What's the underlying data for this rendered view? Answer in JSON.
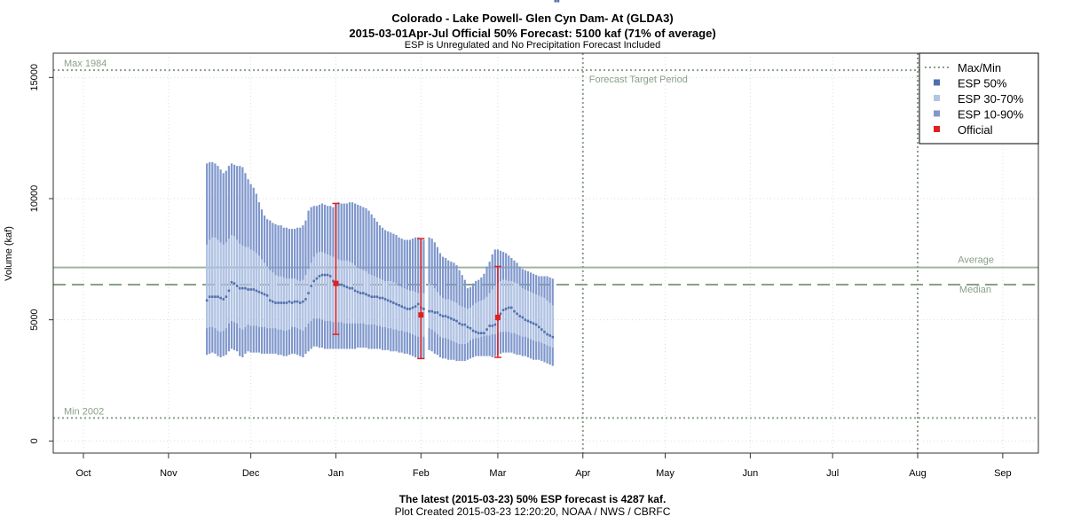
{
  "header": {
    "title": "Colorado - Lake Powell- Glen Cyn Dam- At (GLDA3)",
    "subtitle": "2015-03-01Apr-Jul Official 50% Forecast: 5100 kaf (71% of average)",
    "note": "ESP is Unregulated and No Precipitation Forecast Included"
  },
  "footer": {
    "latest": "The latest (2015-03-23) 50% ESP forecast is 4287 kaf.",
    "created": "Plot Created 2015-03-23 12:20:20, NOAA / NWS / CBRFC"
  },
  "colors": {
    "esp50": "#4f6fae",
    "esp30_70": "#b3c4e4",
    "esp10_90": "#7f97cc",
    "official": "#e02020",
    "ref_lines": "#8aa08a"
  },
  "chart_data": {
    "type": "line",
    "ylabel": "Volume (kaf)",
    "xlabel": "",
    "ylim": [
      -500,
      16000
    ],
    "yticks": [
      0,
      5000,
      10000,
      15000
    ],
    "x_months": [
      "Oct",
      "Nov",
      "Dec",
      "Jan",
      "Feb",
      "Mar",
      "Apr",
      "May",
      "Jun",
      "Jul",
      "Aug",
      "Sep"
    ],
    "grid": true,
    "legend": {
      "position": "top-right",
      "entries": [
        {
          "label": "Max/Min",
          "symbol": "dotted-line",
          "color": "#8aa08a"
        },
        {
          "label": "ESP 50%",
          "symbol": "square",
          "color": "#4f6fae"
        },
        {
          "label": "ESP 30-70%",
          "symbol": "square",
          "color": "#b3c4e4"
        },
        {
          "label": "ESP 10-90%",
          "symbol": "square",
          "color": "#7f97cc"
        },
        {
          "label": "Official",
          "symbol": "square",
          "color": "#e02020"
        }
      ]
    },
    "reference_lines": {
      "max": {
        "label": "Max 1984",
        "value": 15300
      },
      "min": {
        "label": "Min 2002",
        "value": 950
      },
      "average": {
        "label": "Average",
        "value": 7160
      },
      "median": {
        "label": "Median",
        "value": 6450
      }
    },
    "forecast_period": {
      "label": "Forecast Target Period",
      "start": "Apr",
      "end": "Aug"
    },
    "esp_series": {
      "dates": [
        "11-15",
        "11-16",
        "11-17",
        "11-18",
        "11-19",
        "11-20",
        "11-21",
        "11-22",
        "11-23",
        "11-24",
        "11-25",
        "11-26",
        "11-27",
        "11-28",
        "11-29",
        "11-30",
        "12-01",
        "12-02",
        "12-03",
        "12-04",
        "12-05",
        "12-06",
        "12-07",
        "12-08",
        "12-09",
        "12-10",
        "12-11",
        "12-12",
        "12-13",
        "12-14",
        "12-15",
        "12-16",
        "12-17",
        "12-18",
        "12-19",
        "12-20",
        "12-21",
        "12-22",
        "12-23",
        "12-24",
        "12-25",
        "12-26",
        "12-27",
        "12-28",
        "12-29",
        "12-30",
        "12-31",
        "01-01",
        "01-02",
        "01-03",
        "01-04",
        "01-05",
        "01-06",
        "01-07",
        "01-08",
        "01-09",
        "01-10",
        "01-11",
        "01-12",
        "01-13",
        "01-14",
        "01-15",
        "01-16",
        "01-17",
        "01-18",
        "01-19",
        "01-20",
        "01-21",
        "01-22",
        "01-23",
        "01-24",
        "01-25",
        "01-26",
        "01-27",
        "01-28",
        "01-29",
        "01-30",
        "01-31",
        "02-01",
        "02-02",
        "02-04",
        "02-05",
        "02-06",
        "02-07",
        "02-08",
        "02-09",
        "02-10",
        "02-11",
        "02-12",
        "02-13",
        "02-14",
        "02-15",
        "02-16",
        "02-17",
        "02-18",
        "02-19",
        "02-20",
        "02-21",
        "02-22",
        "02-23",
        "02-24",
        "02-25",
        "02-26",
        "02-27",
        "02-28",
        "03-01",
        "03-02",
        "03-03",
        "03-04",
        "03-05",
        "03-06",
        "03-07",
        "03-08",
        "03-09",
        "03-10",
        "03-11",
        "03-12",
        "03-13",
        "03-14",
        "03-15",
        "03-16",
        "03-17",
        "03-18",
        "03-19",
        "03-20",
        "03-21",
        "03-22",
        "03-23"
      ],
      "p10": [
        3550,
        3600,
        3650,
        3600,
        3500,
        3450,
        3500,
        3550,
        3700,
        3800,
        3750,
        3700,
        3500,
        3450,
        3600,
        3700,
        3650,
        3650,
        3650,
        3650,
        3600,
        3600,
        3600,
        3600,
        3600,
        3600,
        3550,
        3550,
        3500,
        3500,
        3550,
        3600,
        3600,
        3550,
        3500,
        3450,
        3600,
        3700,
        3800,
        3900,
        3900,
        3850,
        3850,
        3800,
        3800,
        3800,
        3800,
        3800,
        3800,
        3800,
        3800,
        3800,
        3800,
        3800,
        3800,
        3850,
        3850,
        3850,
        3850,
        3800,
        3800,
        3800,
        3800,
        3800,
        3750,
        3750,
        3750,
        3700,
        3700,
        3700,
        3650,
        3650,
        3600,
        3600,
        3550,
        3500,
        3450,
        3400,
        3400,
        3400,
        3750,
        3700,
        3600,
        3550,
        3450,
        3400,
        3400,
        3350,
        3350,
        3350,
        3300,
        3300,
        3300,
        3300,
        3350,
        3400,
        3450,
        3500,
        3500,
        3500,
        3500,
        3500,
        3500,
        3450,
        3500,
        3550,
        3600,
        3650,
        3650,
        3650,
        3650,
        3600,
        3550,
        3550,
        3500,
        3500,
        3450,
        3400,
        3350,
        3350,
        3350,
        3300,
        3250,
        3200,
        3150,
        3100
      ],
      "p30": [
        4650,
        4700,
        4700,
        4650,
        4550,
        4500,
        4550,
        4650,
        4850,
        4950,
        4900,
        4850,
        4650,
        4600,
        4700,
        4800,
        4750,
        4750,
        4750,
        4700,
        4700,
        4700,
        4650,
        4650,
        4650,
        4650,
        4600,
        4600,
        4550,
        4550,
        4600,
        4700,
        4700,
        4650,
        4600,
        4550,
        4700,
        4850,
        4950,
        5050,
        5050,
        5050,
        5000,
        4950,
        4950,
        4950,
        4900,
        4900,
        4900,
        4900,
        4850,
        4850,
        4850,
        4850,
        4850,
        4850,
        4850,
        4850,
        4800,
        4800,
        4800,
        4800,
        4750,
        4750,
        4700,
        4700,
        4650,
        4650,
        4600,
        4600,
        4550,
        4550,
        4500,
        4500,
        4450,
        4400,
        4350,
        4300,
        4300,
        4300,
        4650,
        4600,
        4500,
        4400,
        4300,
        4250,
        4250,
        4200,
        4150,
        4100,
        4050,
        4000,
        4000,
        4000,
        4050,
        4150,
        4200,
        4250,
        4250,
        4300,
        4350,
        4350,
        4350,
        4400,
        4400,
        4450,
        4500,
        4500,
        4500,
        4500,
        4450,
        4450,
        4400,
        4350,
        4300,
        4300,
        4250,
        4200,
        4150,
        4100,
        4100,
        4050,
        4000,
        3950,
        3900,
        3850
      ],
      "p50": [
        5800,
        5950,
        5950,
        5950,
        5950,
        5900,
        5850,
        5950,
        6200,
        6550,
        6500,
        6400,
        6300,
        6300,
        6300,
        6250,
        6250,
        6250,
        6200,
        6150,
        6100,
        6050,
        6000,
        5800,
        5750,
        5700,
        5700,
        5700,
        5700,
        5700,
        5750,
        5700,
        5750,
        5750,
        5700,
        5750,
        5850,
        6100,
        6400,
        6600,
        6700,
        6800,
        6850,
        6850,
        6850,
        6800,
        6600,
        6500,
        6450,
        6450,
        6400,
        6350,
        6300,
        6300,
        6200,
        6150,
        6100,
        6100,
        6050,
        6000,
        5950,
        5950,
        5950,
        5900,
        5900,
        5850,
        5800,
        5750,
        5700,
        5650,
        5600,
        5550,
        5500,
        5450,
        5450,
        5500,
        5550,
        5650,
        5500,
        5450,
        5350,
        5350,
        5300,
        5300,
        5200,
        5150,
        5150,
        5100,
        5050,
        5000,
        4950,
        4850,
        4800,
        4800,
        4700,
        4650,
        4550,
        4500,
        4450,
        4450,
        4450,
        4600,
        4750,
        4750,
        4800,
        5000,
        5250,
        5400,
        5450,
        5500,
        5500,
        5350,
        5250,
        5150,
        5100,
        5000,
        4950,
        4900,
        4850,
        4800,
        4700,
        4600,
        4500,
        4400,
        4350,
        4287
      ],
      "p70": [
        8100,
        8300,
        8400,
        8400,
        8300,
        8200,
        8100,
        8200,
        8350,
        8500,
        8450,
        8300,
        8150,
        8050,
        8000,
        8000,
        7900,
        7850,
        7750,
        7650,
        7500,
        7350,
        7200,
        7050,
        6950,
        6850,
        6800,
        6800,
        6750,
        6700,
        6700,
        6700,
        6700,
        6650,
        6600,
        6650,
        6850,
        7100,
        7350,
        7600,
        7750,
        7800,
        7800,
        7750,
        7700,
        7650,
        7600,
        7550,
        7500,
        7450,
        7450,
        7450,
        7400,
        7350,
        7250,
        7150,
        7100,
        7050,
        7000,
        6900,
        6850,
        6800,
        6750,
        6700,
        6650,
        6600,
        6600,
        6600,
        6550,
        6500,
        6400,
        6350,
        6300,
        6250,
        6200,
        6200,
        6150,
        6100,
        6100,
        6100,
        6500,
        6450,
        6300,
        6150,
        6000,
        5900,
        5850,
        5850,
        5800,
        5750,
        5700,
        5600,
        5550,
        5500,
        5450,
        5500,
        5600,
        5700,
        5750,
        5800,
        5850,
        5950,
        6100,
        6250,
        6400,
        6500,
        6600,
        6650,
        6650,
        6600,
        6600,
        6550,
        6500,
        6400,
        6300,
        6250,
        6200,
        6150,
        6100,
        6050,
        6000,
        5950,
        5900,
        5800,
        5700,
        5600
      ],
      "p90": [
        11450,
        11500,
        11500,
        11450,
        11350,
        11200,
        11050,
        11150,
        11350,
        11450,
        11400,
        11350,
        11350,
        11300,
        11050,
        10800,
        10600,
        10450,
        10200,
        9850,
        9550,
        9300,
        9150,
        9100,
        9000,
        8950,
        8900,
        8900,
        8800,
        8800,
        8750,
        8750,
        8750,
        8800,
        8800,
        8900,
        9100,
        9500,
        9650,
        9700,
        9700,
        9750,
        9800,
        9750,
        9700,
        9700,
        9650,
        9800,
        9850,
        9800,
        9800,
        9800,
        9850,
        9850,
        9800,
        9750,
        9700,
        9650,
        9600,
        9500,
        9350,
        9200,
        9050,
        8900,
        8800,
        8700,
        8650,
        8600,
        8550,
        8500,
        8400,
        8350,
        8300,
        8300,
        8300,
        8350,
        8400,
        8400,
        8350,
        8300,
        8400,
        8350,
        8200,
        8000,
        7750,
        7600,
        7550,
        7450,
        7400,
        7350,
        7250,
        7050,
        6850,
        6650,
        6300,
        6350,
        6500,
        6600,
        6650,
        6750,
        6900,
        7200,
        7400,
        7700,
        7900,
        7900,
        7850,
        7800,
        7750,
        7650,
        7550,
        7450,
        7350,
        7200,
        7100,
        7050,
        7000,
        6950,
        6900,
        6850,
        6800,
        6800,
        6800,
        6800,
        6750,
        6700
      ]
    },
    "official_forecasts": [
      {
        "date": "01-01",
        "p50": 6500,
        "p10": 4400,
        "p90": 9800
      },
      {
        "date": "02-01",
        "p50": 5200,
        "p10": 3400,
        "p90": 8350
      },
      {
        "date": "03-01",
        "p50": 5100,
        "p10": 3450,
        "p90": 7200
      }
    ]
  }
}
